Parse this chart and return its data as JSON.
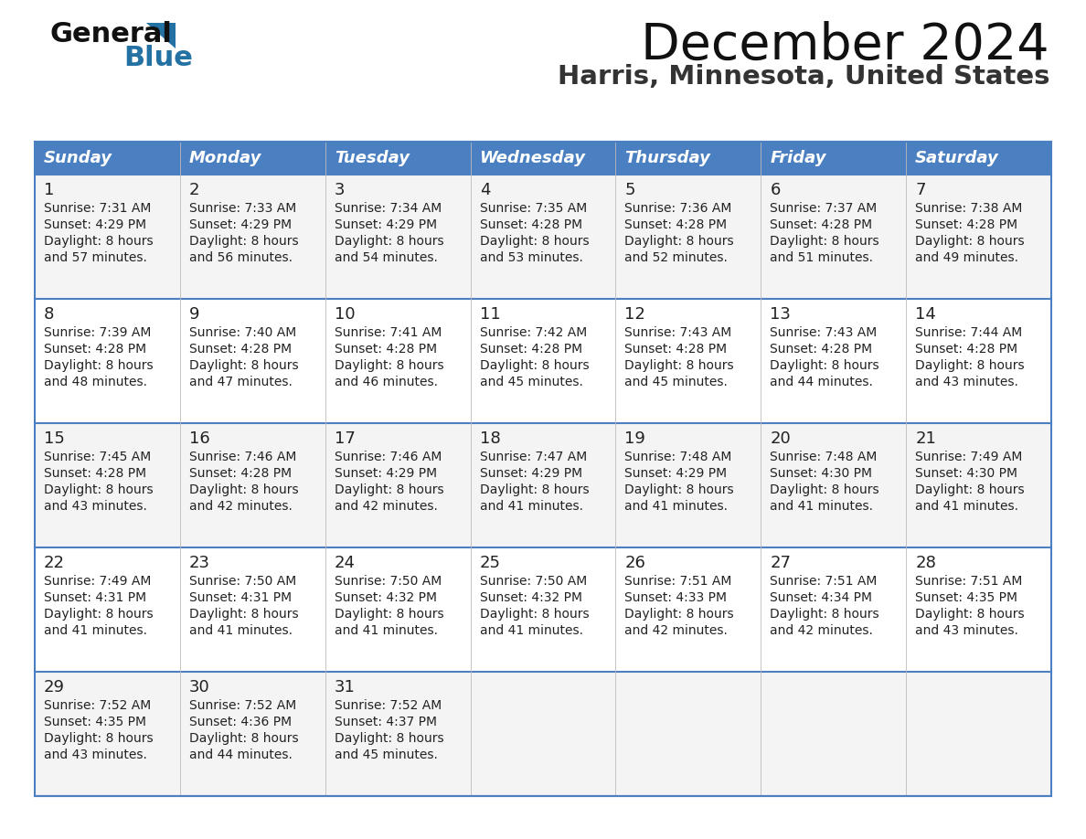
{
  "title": "December 2024",
  "subtitle": "Harris, Minnesota, United States",
  "header_color": "#4a7fc1",
  "header_text_color": "#FFFFFF",
  "grid_line_color": "#4a7fc1",
  "day_names": [
    "Sunday",
    "Monday",
    "Tuesday",
    "Wednesday",
    "Thursday",
    "Friday",
    "Saturday"
  ],
  "bg_color": "#FFFFFF",
  "row_bg": [
    "#F4F4F4",
    "#FFFFFF",
    "#F4F4F4",
    "#FFFFFF",
    "#F4F4F4"
  ],
  "logo_general_color": "#111111",
  "logo_blue_color": "#2471A3",
  "logo_triangle_color": "#2471A3",
  "days": [
    {
      "day": 1,
      "col": 0,
      "row": 0,
      "sunrise": "7:31 AM",
      "sunset": "4:29 PM",
      "daylight": "8 hours and 57 minutes"
    },
    {
      "day": 2,
      "col": 1,
      "row": 0,
      "sunrise": "7:33 AM",
      "sunset": "4:29 PM",
      "daylight": "8 hours and 56 minutes"
    },
    {
      "day": 3,
      "col": 2,
      "row": 0,
      "sunrise": "7:34 AM",
      "sunset": "4:29 PM",
      "daylight": "8 hours and 54 minutes"
    },
    {
      "day": 4,
      "col": 3,
      "row": 0,
      "sunrise": "7:35 AM",
      "sunset": "4:28 PM",
      "daylight": "8 hours and 53 minutes"
    },
    {
      "day": 5,
      "col": 4,
      "row": 0,
      "sunrise": "7:36 AM",
      "sunset": "4:28 PM",
      "daylight": "8 hours and 52 minutes"
    },
    {
      "day": 6,
      "col": 5,
      "row": 0,
      "sunrise": "7:37 AM",
      "sunset": "4:28 PM",
      "daylight": "8 hours and 51 minutes"
    },
    {
      "day": 7,
      "col": 6,
      "row": 0,
      "sunrise": "7:38 AM",
      "sunset": "4:28 PM",
      "daylight": "8 hours and 49 minutes"
    },
    {
      "day": 8,
      "col": 0,
      "row": 1,
      "sunrise": "7:39 AM",
      "sunset": "4:28 PM",
      "daylight": "8 hours and 48 minutes"
    },
    {
      "day": 9,
      "col": 1,
      "row": 1,
      "sunrise": "7:40 AM",
      "sunset": "4:28 PM",
      "daylight": "8 hours and 47 minutes"
    },
    {
      "day": 10,
      "col": 2,
      "row": 1,
      "sunrise": "7:41 AM",
      "sunset": "4:28 PM",
      "daylight": "8 hours and 46 minutes"
    },
    {
      "day": 11,
      "col": 3,
      "row": 1,
      "sunrise": "7:42 AM",
      "sunset": "4:28 PM",
      "daylight": "8 hours and 45 minutes"
    },
    {
      "day": 12,
      "col": 4,
      "row": 1,
      "sunrise": "7:43 AM",
      "sunset": "4:28 PM",
      "daylight": "8 hours and 45 minutes"
    },
    {
      "day": 13,
      "col": 5,
      "row": 1,
      "sunrise": "7:43 AM",
      "sunset": "4:28 PM",
      "daylight": "8 hours and 44 minutes"
    },
    {
      "day": 14,
      "col": 6,
      "row": 1,
      "sunrise": "7:44 AM",
      "sunset": "4:28 PM",
      "daylight": "8 hours and 43 minutes"
    },
    {
      "day": 15,
      "col": 0,
      "row": 2,
      "sunrise": "7:45 AM",
      "sunset": "4:28 PM",
      "daylight": "8 hours and 43 minutes"
    },
    {
      "day": 16,
      "col": 1,
      "row": 2,
      "sunrise": "7:46 AM",
      "sunset": "4:28 PM",
      "daylight": "8 hours and 42 minutes"
    },
    {
      "day": 17,
      "col": 2,
      "row": 2,
      "sunrise": "7:46 AM",
      "sunset": "4:29 PM",
      "daylight": "8 hours and 42 minutes"
    },
    {
      "day": 18,
      "col": 3,
      "row": 2,
      "sunrise": "7:47 AM",
      "sunset": "4:29 PM",
      "daylight": "8 hours and 41 minutes"
    },
    {
      "day": 19,
      "col": 4,
      "row": 2,
      "sunrise": "7:48 AM",
      "sunset": "4:29 PM",
      "daylight": "8 hours and 41 minutes"
    },
    {
      "day": 20,
      "col": 5,
      "row": 2,
      "sunrise": "7:48 AM",
      "sunset": "4:30 PM",
      "daylight": "8 hours and 41 minutes"
    },
    {
      "day": 21,
      "col": 6,
      "row": 2,
      "sunrise": "7:49 AM",
      "sunset": "4:30 PM",
      "daylight": "8 hours and 41 minutes"
    },
    {
      "day": 22,
      "col": 0,
      "row": 3,
      "sunrise": "7:49 AM",
      "sunset": "4:31 PM",
      "daylight": "8 hours and 41 minutes"
    },
    {
      "day": 23,
      "col": 1,
      "row": 3,
      "sunrise": "7:50 AM",
      "sunset": "4:31 PM",
      "daylight": "8 hours and 41 minutes"
    },
    {
      "day": 24,
      "col": 2,
      "row": 3,
      "sunrise": "7:50 AM",
      "sunset": "4:32 PM",
      "daylight": "8 hours and 41 minutes"
    },
    {
      "day": 25,
      "col": 3,
      "row": 3,
      "sunrise": "7:50 AM",
      "sunset": "4:32 PM",
      "daylight": "8 hours and 41 minutes"
    },
    {
      "day": 26,
      "col": 4,
      "row": 3,
      "sunrise": "7:51 AM",
      "sunset": "4:33 PM",
      "daylight": "8 hours and 42 minutes"
    },
    {
      "day": 27,
      "col": 5,
      "row": 3,
      "sunrise": "7:51 AM",
      "sunset": "4:34 PM",
      "daylight": "8 hours and 42 minutes"
    },
    {
      "day": 28,
      "col": 6,
      "row": 3,
      "sunrise": "7:51 AM",
      "sunset": "4:35 PM",
      "daylight": "8 hours and 43 minutes"
    },
    {
      "day": 29,
      "col": 0,
      "row": 4,
      "sunrise": "7:52 AM",
      "sunset": "4:35 PM",
      "daylight": "8 hours and 43 minutes"
    },
    {
      "day": 30,
      "col": 1,
      "row": 4,
      "sunrise": "7:52 AM",
      "sunset": "4:36 PM",
      "daylight": "8 hours and 44 minutes"
    },
    {
      "day": 31,
      "col": 2,
      "row": 4,
      "sunrise": "7:52 AM",
      "sunset": "4:37 PM",
      "daylight": "8 hours and 45 minutes"
    }
  ]
}
